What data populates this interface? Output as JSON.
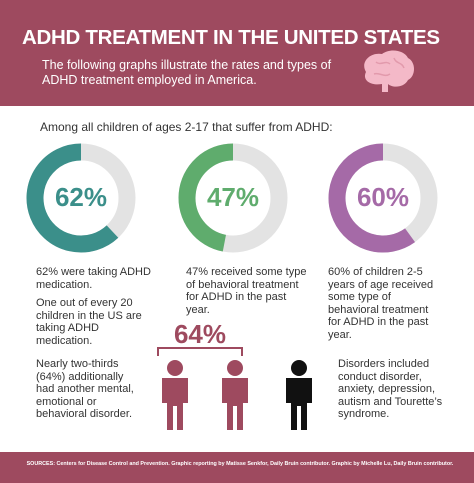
{
  "header": {
    "title": "ADHD TREATMENT IN THE UNITED STATES",
    "subtitle": "The following graphs illustrate the rates and types of ADHD treatment employed in America."
  },
  "intro": "Among all children of ages 2-17 that suffer from ADHD:",
  "chart_data": [
    {
      "type": "donut",
      "values": [
        62
      ],
      "value_labels": [
        "62%"
      ],
      "color": "#3b8f8a",
      "track_color": "#e3e3e3"
    },
    {
      "type": "donut",
      "values": [
        47
      ],
      "value_labels": [
        "47%"
      ],
      "color": "#5fac6d",
      "track_color": "#e3e3e3"
    },
    {
      "type": "donut",
      "values": [
        60
      ],
      "value_labels": [
        "60%"
      ],
      "color": "#a56aa7",
      "track_color": "#e3e3e3"
    }
  ],
  "notes": [
    "62% were taking ADHD medication.",
    "One out of every 20 children in the US are taking ADHD medication.",
    "47% received some type of behavioral treatment for ADHD in the past year.",
    "60% of children 2-5 years of age received some type of behavioral treatment for ADHD in the past year."
  ],
  "comorbidity": {
    "value_label": "64%",
    "left_text": "Nearly two-thirds (64%) additionally had another mental, emotional or behavioral disorder.",
    "right_text": "Disorders included conduct disorder, anxiety, depression, autism and Tourette’s syndrome."
  },
  "footer": "SOURCES: Centers for Disease Control and Prevention. Graphic reporting by Matisse Senkfor, Daily Bruin contributor. Graphic by Michelle Lu, Daily Bruin contributor."
}
